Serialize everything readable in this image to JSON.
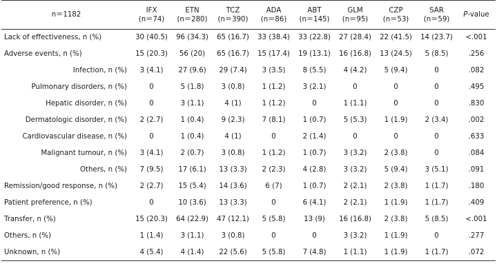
{
  "header": {
    "n_label": "n＝1182",
    "columns": [
      {
        "name": "IFX",
        "n": "(n＝74)"
      },
      {
        "name": "ETN",
        "n": "(n＝280)"
      },
      {
        "name": "TCZ",
        "n": "(n＝390)"
      },
      {
        "name": "ADA",
        "n": "(n＝86)"
      },
      {
        "name": "ABT",
        "n": "(n＝145)"
      },
      {
        "name": "GLM",
        "n": "(n＝95)"
      },
      {
        "name": "CZP",
        "n": "(n＝53)"
      },
      {
        "name": "SAR",
        "n": "(n＝59)"
      }
    ],
    "pvalue_italic": "P",
    "pvalue_rest": "-value"
  },
  "rows": [
    {
      "label": "Lack of effectiveness, n (%)",
      "cells": [
        "30 (40.5)",
        "96 (34.3)",
        "65 (16.7)",
        "33 (38.4)",
        "33 (22.8)",
        "27 (28.4)",
        "22 (41.5)",
        "14 (23.7)"
      ],
      "p": "<.001"
    },
    {
      "label": "Adverse events, n (%)",
      "cells": [
        "15 (20.3)",
        "56 (20)",
        "65 (16.7)",
        "15 (17.4)",
        "19 (13.1)",
        "16 (16.8)",
        "13 (24.5)",
        "5 (8.5)"
      ],
      "p": ".256"
    },
    {
      "label": "Infection, n (%)",
      "cells": [
        "3 (4.1)",
        "27 (9.6)",
        "29 (7.4)",
        "3 (3.5)",
        "8 (5.5)",
        "4 (4.2)",
        "5 (9.4)",
        "0"
      ],
      "p": ".082"
    },
    {
      "label": "Pulmonary disorders, n (%)",
      "cells": [
        "0",
        "5 (1.8)",
        "3 (0.8)",
        "1 (1.2)",
        "3 (2.1)",
        "0",
        "0",
        "0"
      ],
      "p": ".495"
    },
    {
      "label": "Hepatic disorder, n (%)",
      "cells": [
        "0",
        "3 (1.1)",
        "4 (1)",
        "1 (1.2)",
        "0",
        "1 (1.1)",
        "0",
        "0"
      ],
      "p": ".830"
    },
    {
      "label": "Dermatologic disorder, n (%)",
      "cells": [
        "2 (2.7)",
        "1 (0.4)",
        "9 (2.3)",
        "7 (8.1)",
        "1 (0.7)",
        "5 (5.3)",
        "1 (1.9)",
        "2 (3.4)"
      ],
      "p": ".002"
    },
    {
      "label": "Cardiovascular disease, n (%)",
      "cells": [
        "0",
        "1 (0.4)",
        "4 (1)",
        "0",
        "2 (1.4)",
        "0",
        "0",
        "0"
      ],
      "p": ".633"
    },
    {
      "label": "Malignant tumour, n (%)",
      "cells": [
        "3 (4.1)",
        "2 (0.7)",
        "3 (0.8)",
        "1 (1.2)",
        "1 (0.7)",
        "3 (3.2)",
        "2 (3.8)",
        "0"
      ],
      "p": ".084"
    },
    {
      "label": "Others, n (%)",
      "cells": [
        "7 (9.5)",
        "17 (6.1)",
        "13 (3.3)",
        "2 (2.3)",
        "4 (2.8)",
        "3 (3.2)",
        "5 (9.4)",
        "3 (5.1)"
      ],
      "p": ".091"
    },
    {
      "label": "Remission/good response, n (%)",
      "cells": [
        "2 (2.7)",
        "15 (5.4)",
        "14 (3.6)",
        "6 (7)",
        "1 (0.7)",
        "2 (2.1)",
        "2 (3.8)",
        "1 (1.7)"
      ],
      "p": ".180"
    },
    {
      "label": "Patient preference, n (%)",
      "cells": [
        "0",
        "10 (3.6)",
        "13 (3.3)",
        "0",
        "6 (4.1)",
        "2 (2.1)",
        "1 (1.9)",
        "1 (1.7)"
      ],
      "p": ".409"
    },
    {
      "label": "Transfer, n (%)",
      "cells": [
        "15 (20.3)",
        "64 (22.9)",
        "47 (12.1)",
        "5 (5.8)",
        "13 (9)",
        "16 (16.8)",
        "2 (3.8)",
        "5 (8.5)"
      ],
      "p": "<.001"
    },
    {
      "label": "Others, n (%)",
      "cells": [
        "1 (1.4)",
        "3 (1.1)",
        "3 (0.8)",
        "0",
        "0",
        "3 (3.2)",
        "1 (1.9)",
        "0"
      ],
      "p": ".277"
    },
    {
      "label": "Unknown, n (%)",
      "cells": [
        "4 (5.4)",
        "4 (1.4)",
        "22 (5.6)",
        "5 (5.8)",
        "7 (4.8)",
        "1 (1.1)",
        "1 (1.9)",
        "1 (1.7)"
      ],
      "p": ".072"
    }
  ]
}
